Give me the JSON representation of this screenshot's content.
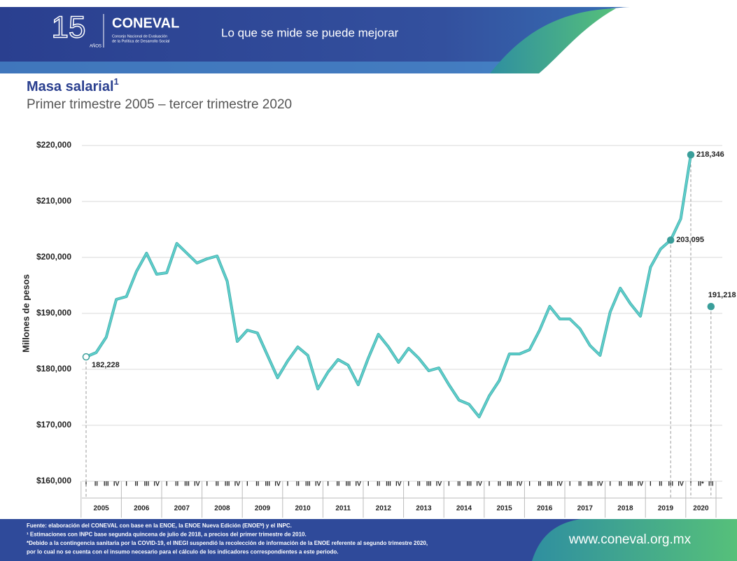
{
  "header": {
    "logo_number": "15",
    "logo_years": "AÑOS",
    "brand": "CONEVAL",
    "brand_line1": "Consejo Nacional de Evaluación",
    "brand_line2": "de la Política de Desarrollo Social",
    "slogan": "Lo que se mide se puede mejorar"
  },
  "chart_data": {
    "type": "line",
    "title": "Masa salarial",
    "title_note": "1",
    "subtitle": "Primer trimestre 2005 – tercer trimestre 2020",
    "y_label": "Millones de pesos",
    "color": "#5fd0cc",
    "categories": [
      "I",
      "II",
      "III",
      "IV",
      "I",
      "II",
      "III",
      "IV",
      "I",
      "II",
      "III",
      "IV",
      "I",
      "II",
      "III",
      "IV",
      "I",
      "II",
      "III",
      "IV",
      "I",
      "II",
      "III",
      "IV",
      "I",
      "II",
      "III",
      "IV",
      "I",
      "II",
      "III",
      "IV",
      "I",
      "II",
      "III",
      "IV",
      "I",
      "II",
      "III",
      "IV",
      "I",
      "II",
      "III",
      "IV",
      "I",
      "II",
      "III",
      "IV",
      "I",
      "II",
      "III",
      "IV",
      "I",
      "II",
      "III",
      "IV",
      "I",
      "II",
      "III",
      "IV",
      "I",
      "II*",
      "III"
    ],
    "years": [
      "2005",
      "2006",
      "2007",
      "2008",
      "2009",
      "2010",
      "2011",
      "2012",
      "2013",
      "2014",
      "2015",
      "2016",
      "2017",
      "2018",
      "2019",
      "2020"
    ],
    "values": [
      182228,
      183000,
      185750,
      192500,
      193000,
      197500,
      200750,
      197000,
      197250,
      202500,
      200750,
      199000,
      199750,
      200250,
      195750,
      185000,
      187000,
      186500,
      182500,
      178500,
      181500,
      184000,
      182500,
      176500,
      179500,
      181750,
      180750,
      177250,
      182000,
      186250,
      184000,
      181250,
      183750,
      182000,
      179750,
      180250,
      177250,
      174500,
      173750,
      171500,
      175250,
      178000,
      182750,
      182750,
      183500,
      187000,
      191250,
      189000,
      189000,
      187250,
      184250,
      182500,
      190250,
      194500,
      191750,
      189500,
      198250,
      201500,
      203095,
      206900,
      218346,
      null,
      191218
    ],
    "value_labels": [
      "182,228",
      null,
      null,
      null,
      null,
      null,
      null,
      null,
      null,
      null,
      null,
      null,
      null,
      null,
      null,
      null,
      null,
      null,
      null,
      null,
      null,
      null,
      null,
      null,
      null,
      null,
      null,
      null,
      null,
      null,
      null,
      null,
      null,
      null,
      null,
      null,
      null,
      null,
      null,
      null,
      null,
      null,
      null,
      null,
      null,
      null,
      null,
      null,
      null,
      null,
      null,
      null,
      null,
      null,
      null,
      null,
      null,
      null,
      "203,095",
      null,
      "218,346",
      null,
      "191,218"
    ],
    "ylim": [
      160000,
      220000
    ],
    "yticks": [
      {
        "value": 160000,
        "label": "$160,000"
      },
      {
        "value": 170000,
        "label": "$170,000"
      },
      {
        "value": 180000,
        "label": "$180,000"
      },
      {
        "value": 190000,
        "label": "$190,000"
      },
      {
        "value": 200000,
        "label": "$200,000"
      },
      {
        "value": 210000,
        "label": "$210,000"
      },
      {
        "value": 220000,
        "label": "$220,000"
      }
    ],
    "grid": true
  },
  "footer": {
    "notes": [
      "Fuente: elaboración del CONEVAL con base en la ENOE, la ENOE Nueva Edición (ENOEᴺ) y el INPC.",
      "¹ Estimaciones con INPC base segunda quincena de julio de 2018, a precios del primer trimestre de 2010.",
      "*Debido a la contingencia sanitaria por la COVID-19, el INEGI suspendió la recolección de información de la ENOE referente al segundo trimestre 2020,",
      "por lo cual no se cuenta con el insumo necesario para el cálculo de los indicadores correspondientes a este periodo."
    ],
    "url": "www.coneval.org.mx"
  }
}
